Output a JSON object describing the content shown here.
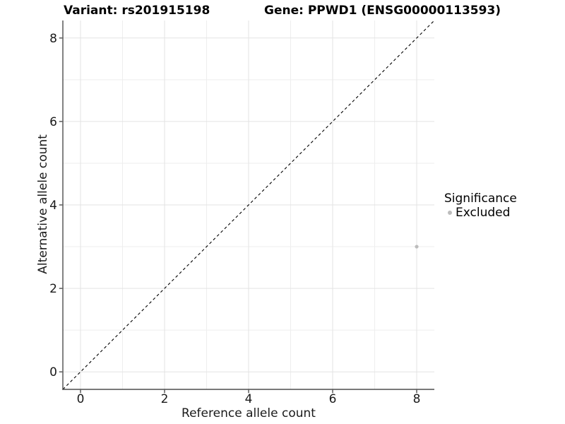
{
  "chart_data": {
    "type": "scatter",
    "titles": {
      "left": "Variant: rs201915198",
      "right": "Gene: PPWD1 (ENSG00000113593)"
    },
    "xlabel": "Reference allele count",
    "ylabel": "Alternative allele count",
    "xlim": [
      0,
      8
    ],
    "ylim": [
      0,
      8
    ],
    "x_ticks": [
      0,
      2,
      4,
      6,
      8
    ],
    "y_ticks": [
      0,
      2,
      4,
      6,
      8
    ],
    "minor_breaks": [
      1,
      3,
      5,
      7
    ],
    "grid": true,
    "points": [
      {
        "x": 8,
        "y": 3,
        "significance": "Excluded",
        "color": "#bcbcbc"
      }
    ],
    "reference_line": {
      "kind": "identity y=x",
      "style": "dashed",
      "color": "#000000"
    },
    "legend": {
      "title": "Significance",
      "position": "right",
      "entries": [
        {
          "label": "Excluded",
          "color": "#bcbcbc"
        }
      ]
    },
    "colors": {
      "background": "#ffffff",
      "grid_major": "#e3e3e3",
      "grid_minor": "#eeeeee",
      "axis": "#4d4d4d",
      "ticks": "#333333",
      "axis_text": "#1a1a1a"
    }
  }
}
